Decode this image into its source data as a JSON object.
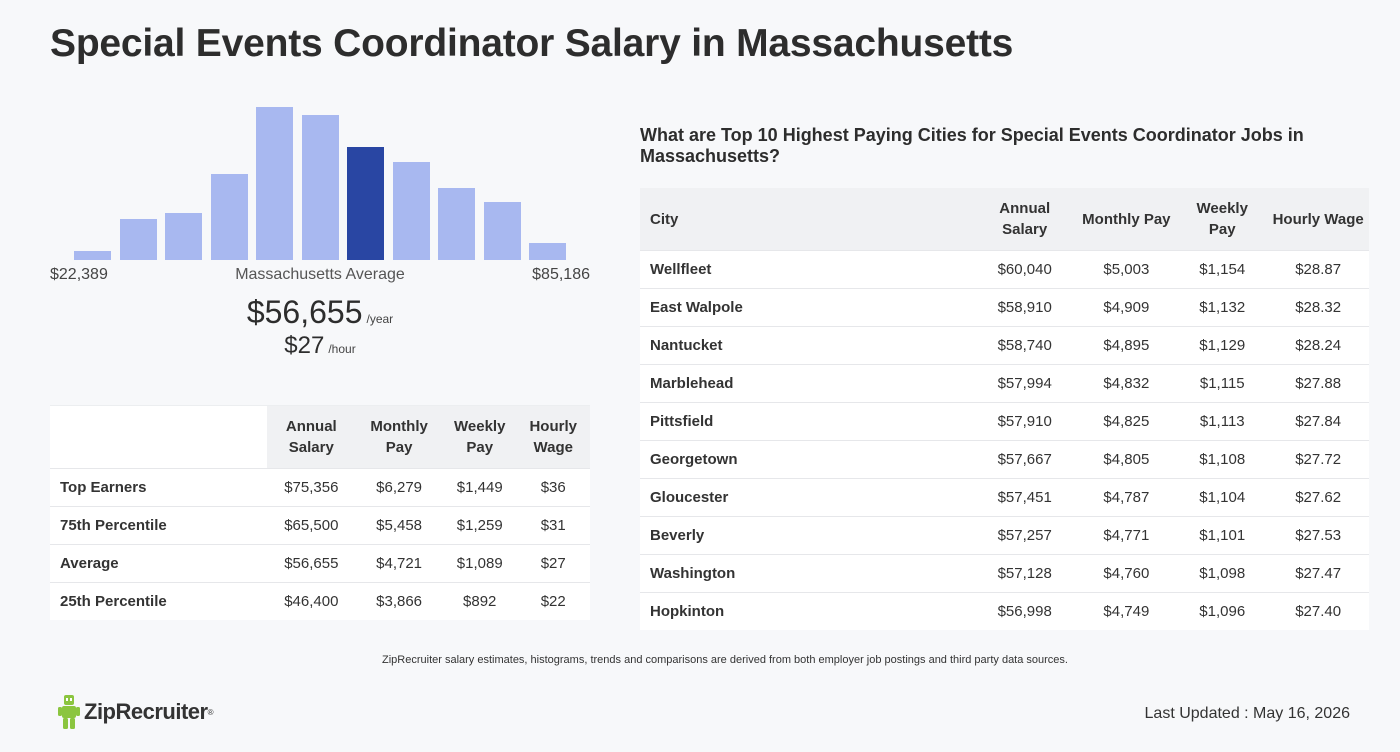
{
  "title": "Special Events Coordinator Salary in Massachusetts",
  "histogram": {
    "min_label": "$22,389",
    "max_label": "$85,186",
    "center_label": "Massachusetts Average",
    "highlight_index": 6,
    "values": [
      6,
      27,
      31,
      56,
      100,
      95,
      74,
      64,
      47,
      38,
      11
    ],
    "colors": {
      "bar": "#a8b8f0",
      "highlight": "#2946a3"
    }
  },
  "average": {
    "annual": "$56,655",
    "annual_unit": "/year",
    "hourly": "$27",
    "hourly_unit": "/hour"
  },
  "percentile_table": {
    "headers": [
      "Annual Salary",
      "Monthly Pay",
      "Weekly Pay",
      "Hourly Wage"
    ],
    "rows": [
      {
        "label": "Top Earners",
        "annual": "$75,356",
        "monthly": "$6,279",
        "weekly": "$1,449",
        "hourly": "$36"
      },
      {
        "label": "75th Percentile",
        "annual": "$65,500",
        "monthly": "$5,458",
        "weekly": "$1,259",
        "hourly": "$31"
      },
      {
        "label": "Average",
        "annual": "$56,655",
        "monthly": "$4,721",
        "weekly": "$1,089",
        "hourly": "$27"
      },
      {
        "label": "25th Percentile",
        "annual": "$46,400",
        "monthly": "$3,866",
        "weekly": "$892",
        "hourly": "$22"
      }
    ]
  },
  "cities": {
    "heading": "What are Top 10 Highest Paying Cities for Special Events Coordinator Jobs in Massachusetts?",
    "headers": [
      "City",
      "Annual Salary",
      "Monthly Pay",
      "Weekly Pay",
      "Hourly Wage"
    ],
    "rows": [
      {
        "city": "Wellfleet",
        "annual": "$60,040",
        "monthly": "$5,003",
        "weekly": "$1,154",
        "hourly": "$28.87"
      },
      {
        "city": "East Walpole",
        "annual": "$58,910",
        "monthly": "$4,909",
        "weekly": "$1,132",
        "hourly": "$28.32"
      },
      {
        "city": "Nantucket",
        "annual": "$58,740",
        "monthly": "$4,895",
        "weekly": "$1,129",
        "hourly": "$28.24"
      },
      {
        "city": "Marblehead",
        "annual": "$57,994",
        "monthly": "$4,832",
        "weekly": "$1,115",
        "hourly": "$27.88"
      },
      {
        "city": "Pittsfield",
        "annual": "$57,910",
        "monthly": "$4,825",
        "weekly": "$1,113",
        "hourly": "$27.84"
      },
      {
        "city": "Georgetown",
        "annual": "$57,667",
        "monthly": "$4,805",
        "weekly": "$1,108",
        "hourly": "$27.72"
      },
      {
        "city": "Gloucester",
        "annual": "$57,451",
        "monthly": "$4,787",
        "weekly": "$1,104",
        "hourly": "$27.62"
      },
      {
        "city": "Beverly",
        "annual": "$57,257",
        "monthly": "$4,771",
        "weekly": "$1,101",
        "hourly": "$27.53"
      },
      {
        "city": "Washington",
        "annual": "$57,128",
        "monthly": "$4,760",
        "weekly": "$1,098",
        "hourly": "$27.47"
      },
      {
        "city": "Hopkinton",
        "annual": "$56,998",
        "monthly": "$4,749",
        "weekly": "$1,096",
        "hourly": "$27.40"
      }
    ]
  },
  "disclaimer": "ZipRecruiter salary estimates, histograms, trends and comparisons are derived from both employer job postings and third party data sources.",
  "logo": {
    "text": "ZipRecruiter",
    "icon": "ziprecruiter-mascot-icon",
    "color": "#8bc53f"
  },
  "last_updated": "Last Updated : May 16, 2026"
}
